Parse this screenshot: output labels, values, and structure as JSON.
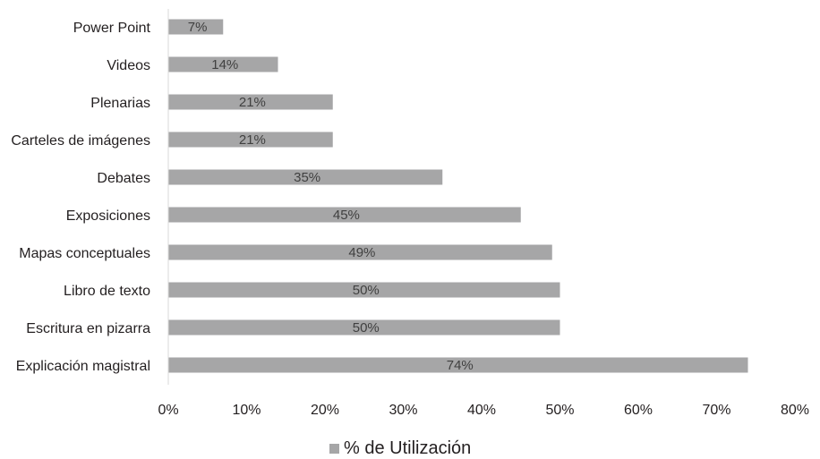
{
  "chart_data": {
    "type": "bar",
    "orientation": "horizontal",
    "categories": [
      "Power Point",
      "Videos",
      "Plenarias",
      "Carteles de imágenes",
      "Debates",
      "Exposiciones",
      "Mapas conceptuales",
      "Libro de texto",
      "Escritura en pizarra",
      "Explicación magistral"
    ],
    "series": [
      {
        "name": "% de Utilización",
        "values": [
          7,
          14,
          21,
          21,
          35,
          45,
          49,
          50,
          50,
          74
        ],
        "data_labels": [
          "7%",
          "14%",
          "21%",
          "21%",
          "35%",
          "45%",
          "49%",
          "50%",
          "50%",
          "74%"
        ],
        "color": "#a6a6a7"
      }
    ],
    "xlim": [
      0,
      80
    ],
    "x_ticks": [
      0,
      10,
      20,
      30,
      40,
      50,
      60,
      70,
      80
    ],
    "x_tick_labels": [
      "0%",
      "10%",
      "20%",
      "30%",
      "40%",
      "50%",
      "60%",
      "70%",
      "80%"
    ],
    "grid": false,
    "legend": {
      "placement": "bottom-center",
      "label": "% de Utilización"
    },
    "colors": {
      "bar": "#a6a6a7",
      "axis": "#d9d9d9",
      "text": "#231f20",
      "data_label": "#404040"
    }
  }
}
